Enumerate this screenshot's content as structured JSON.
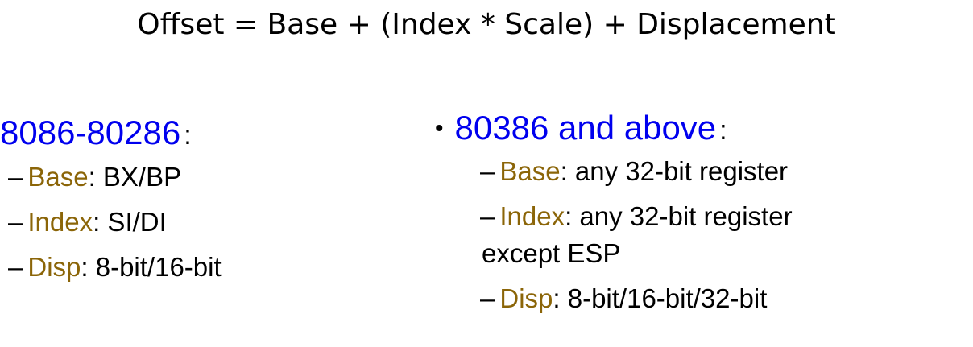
{
  "formula": "Offset = Base + (Index * Scale) + Displacement",
  "left": {
    "heading": "8086-80286",
    "colon": ":",
    "items": [
      {
        "dash": "–",
        "key": "Base",
        "value": ": BX/BP"
      },
      {
        "dash": "–",
        "key": "Index",
        "value": ": SI/DI"
      },
      {
        "dash": "–",
        "key": "Disp",
        "value": ":  8-bit/16-bit"
      }
    ]
  },
  "right": {
    "bullet": "•",
    "heading": "80386 and above",
    "colon": ":",
    "items": [
      {
        "dash": "–",
        "key": "Base",
        "value": ": any 32-bit register"
      },
      {
        "dash": "–",
        "key": "Index",
        "value": ": any 32-bit register",
        "continuation": "except ESP"
      },
      {
        "dash": "–",
        "key": "Disp",
        "value": ": 8-bit/16-bit/32-bit"
      }
    ]
  },
  "colors": {
    "heading": "#0000ee",
    "keyword": "#8b6508",
    "text": "#000000"
  }
}
